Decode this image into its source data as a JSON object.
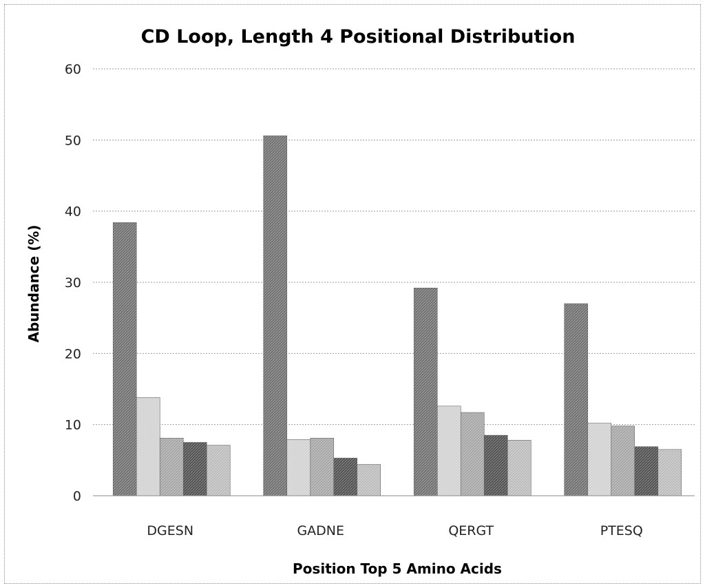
{
  "chart_data": {
    "type": "bar",
    "title": "CD Loop, Length 4 Positional Distribution",
    "xlabel": "Position Top 5 Amino Acids",
    "ylabel": "Abundance (%)",
    "ylim": [
      0,
      60
    ],
    "yticks": [
      "0",
      "10",
      "20",
      "30",
      "40",
      "50",
      "60"
    ],
    "grid": true,
    "categories": [
      "DGESN",
      "GADNE",
      "QERGT",
      "PTESQ"
    ],
    "values": [
      [
        38.4,
        13.8,
        8.1,
        7.5,
        7.1
      ],
      [
        50.6,
        7.9,
        8.1,
        5.3,
        4.4
      ],
      [
        29.2,
        12.6,
        11.7,
        8.5,
        7.8
      ],
      [
        27.0,
        10.2,
        9.8,
        6.9,
        6.5
      ]
    ],
    "bar_colors": [
      "#707070",
      "#d2d2d2",
      "#a6a6a6",
      "#505050",
      "#bcbcbc"
    ]
  }
}
